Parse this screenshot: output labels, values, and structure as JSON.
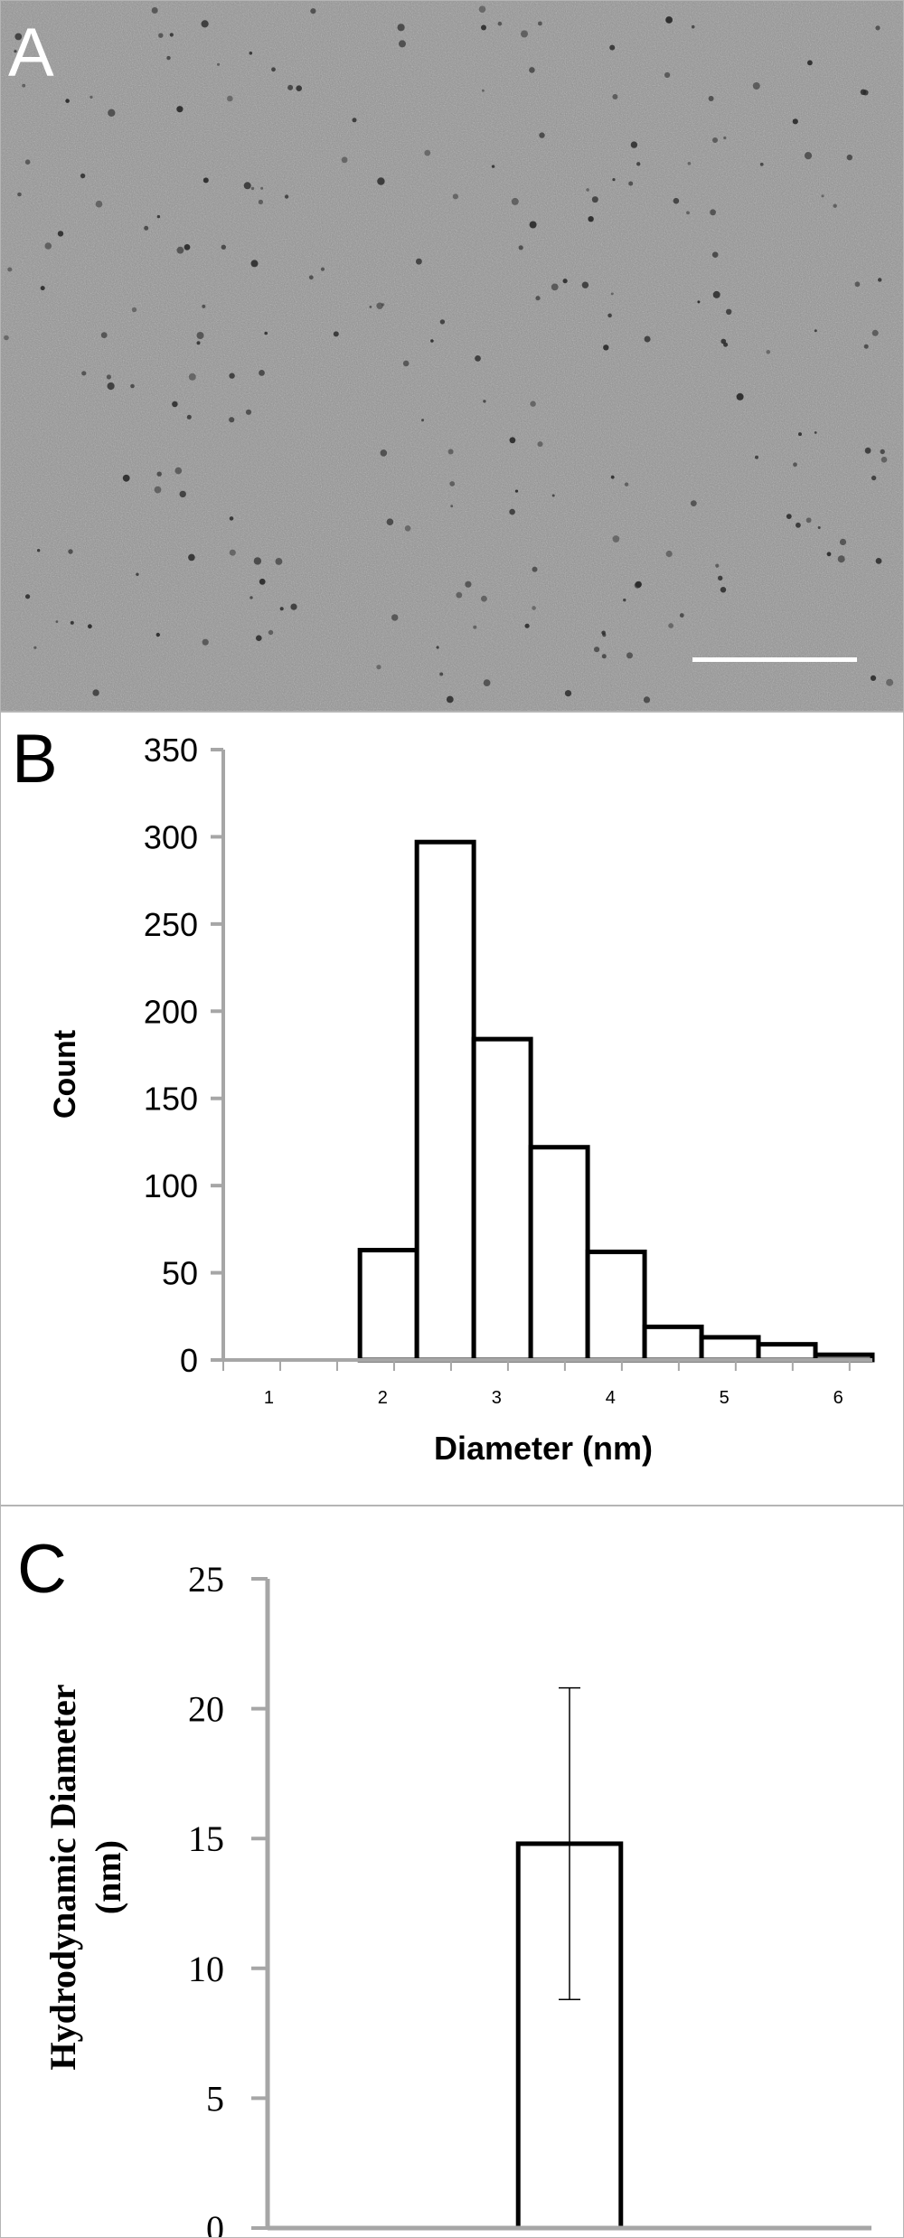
{
  "panels": {
    "a": {
      "label": "A"
    },
    "b": {
      "label": "B"
    },
    "c": {
      "label": "C"
    }
  },
  "colors": {
    "axis": "#a6a6a6",
    "bar_stroke": "#000000",
    "bar_fill": "#ffffff",
    "micrograph_bg": "#8f8f8f",
    "scale_bar": "#ffffff"
  },
  "chart_data": [
    {
      "type": "bar",
      "panel": "B",
      "xlabel": "Diameter (nm)",
      "ylabel": "Count",
      "x_ticks": [
        "1",
        "2",
        "3",
        "4",
        "5",
        "6"
      ],
      "x_tick_values": [
        1,
        2,
        3,
        4,
        5,
        6
      ],
      "xlim": [
        0.6,
        6.3
      ],
      "y_ticks": [
        0,
        50,
        100,
        150,
        200,
        250,
        300,
        350
      ],
      "ylim": [
        0,
        350
      ],
      "bin_width": 0.5,
      "bins": [
        {
          "from": 1.8,
          "to": 2.3,
          "value": 63
        },
        {
          "from": 2.3,
          "to": 2.8,
          "value": 297
        },
        {
          "from": 2.8,
          "to": 3.3,
          "value": 184
        },
        {
          "from": 3.3,
          "to": 3.8,
          "value": 122
        },
        {
          "from": 3.8,
          "to": 4.3,
          "value": 62
        },
        {
          "from": 4.3,
          "to": 4.8,
          "value": 19
        },
        {
          "from": 4.8,
          "to": 5.3,
          "value": 13
        },
        {
          "from": 5.3,
          "to": 5.8,
          "value": 9
        },
        {
          "from": 5.8,
          "to": 6.3,
          "value": 3
        }
      ],
      "grid": false,
      "legend": "none"
    },
    {
      "type": "bar",
      "panel": "C",
      "xlabel": "",
      "ylabel": "Hydrodynamic Diameter (nm)",
      "ylabel_lines": [
        "Hydrodynamic Diameter",
        "(nm)"
      ],
      "y_ticks": [
        0,
        5,
        10,
        15,
        20,
        25
      ],
      "ylim": [
        0,
        25
      ],
      "values": [
        14.8
      ],
      "error": [
        6.0
      ],
      "grid": false,
      "legend": "none"
    }
  ]
}
